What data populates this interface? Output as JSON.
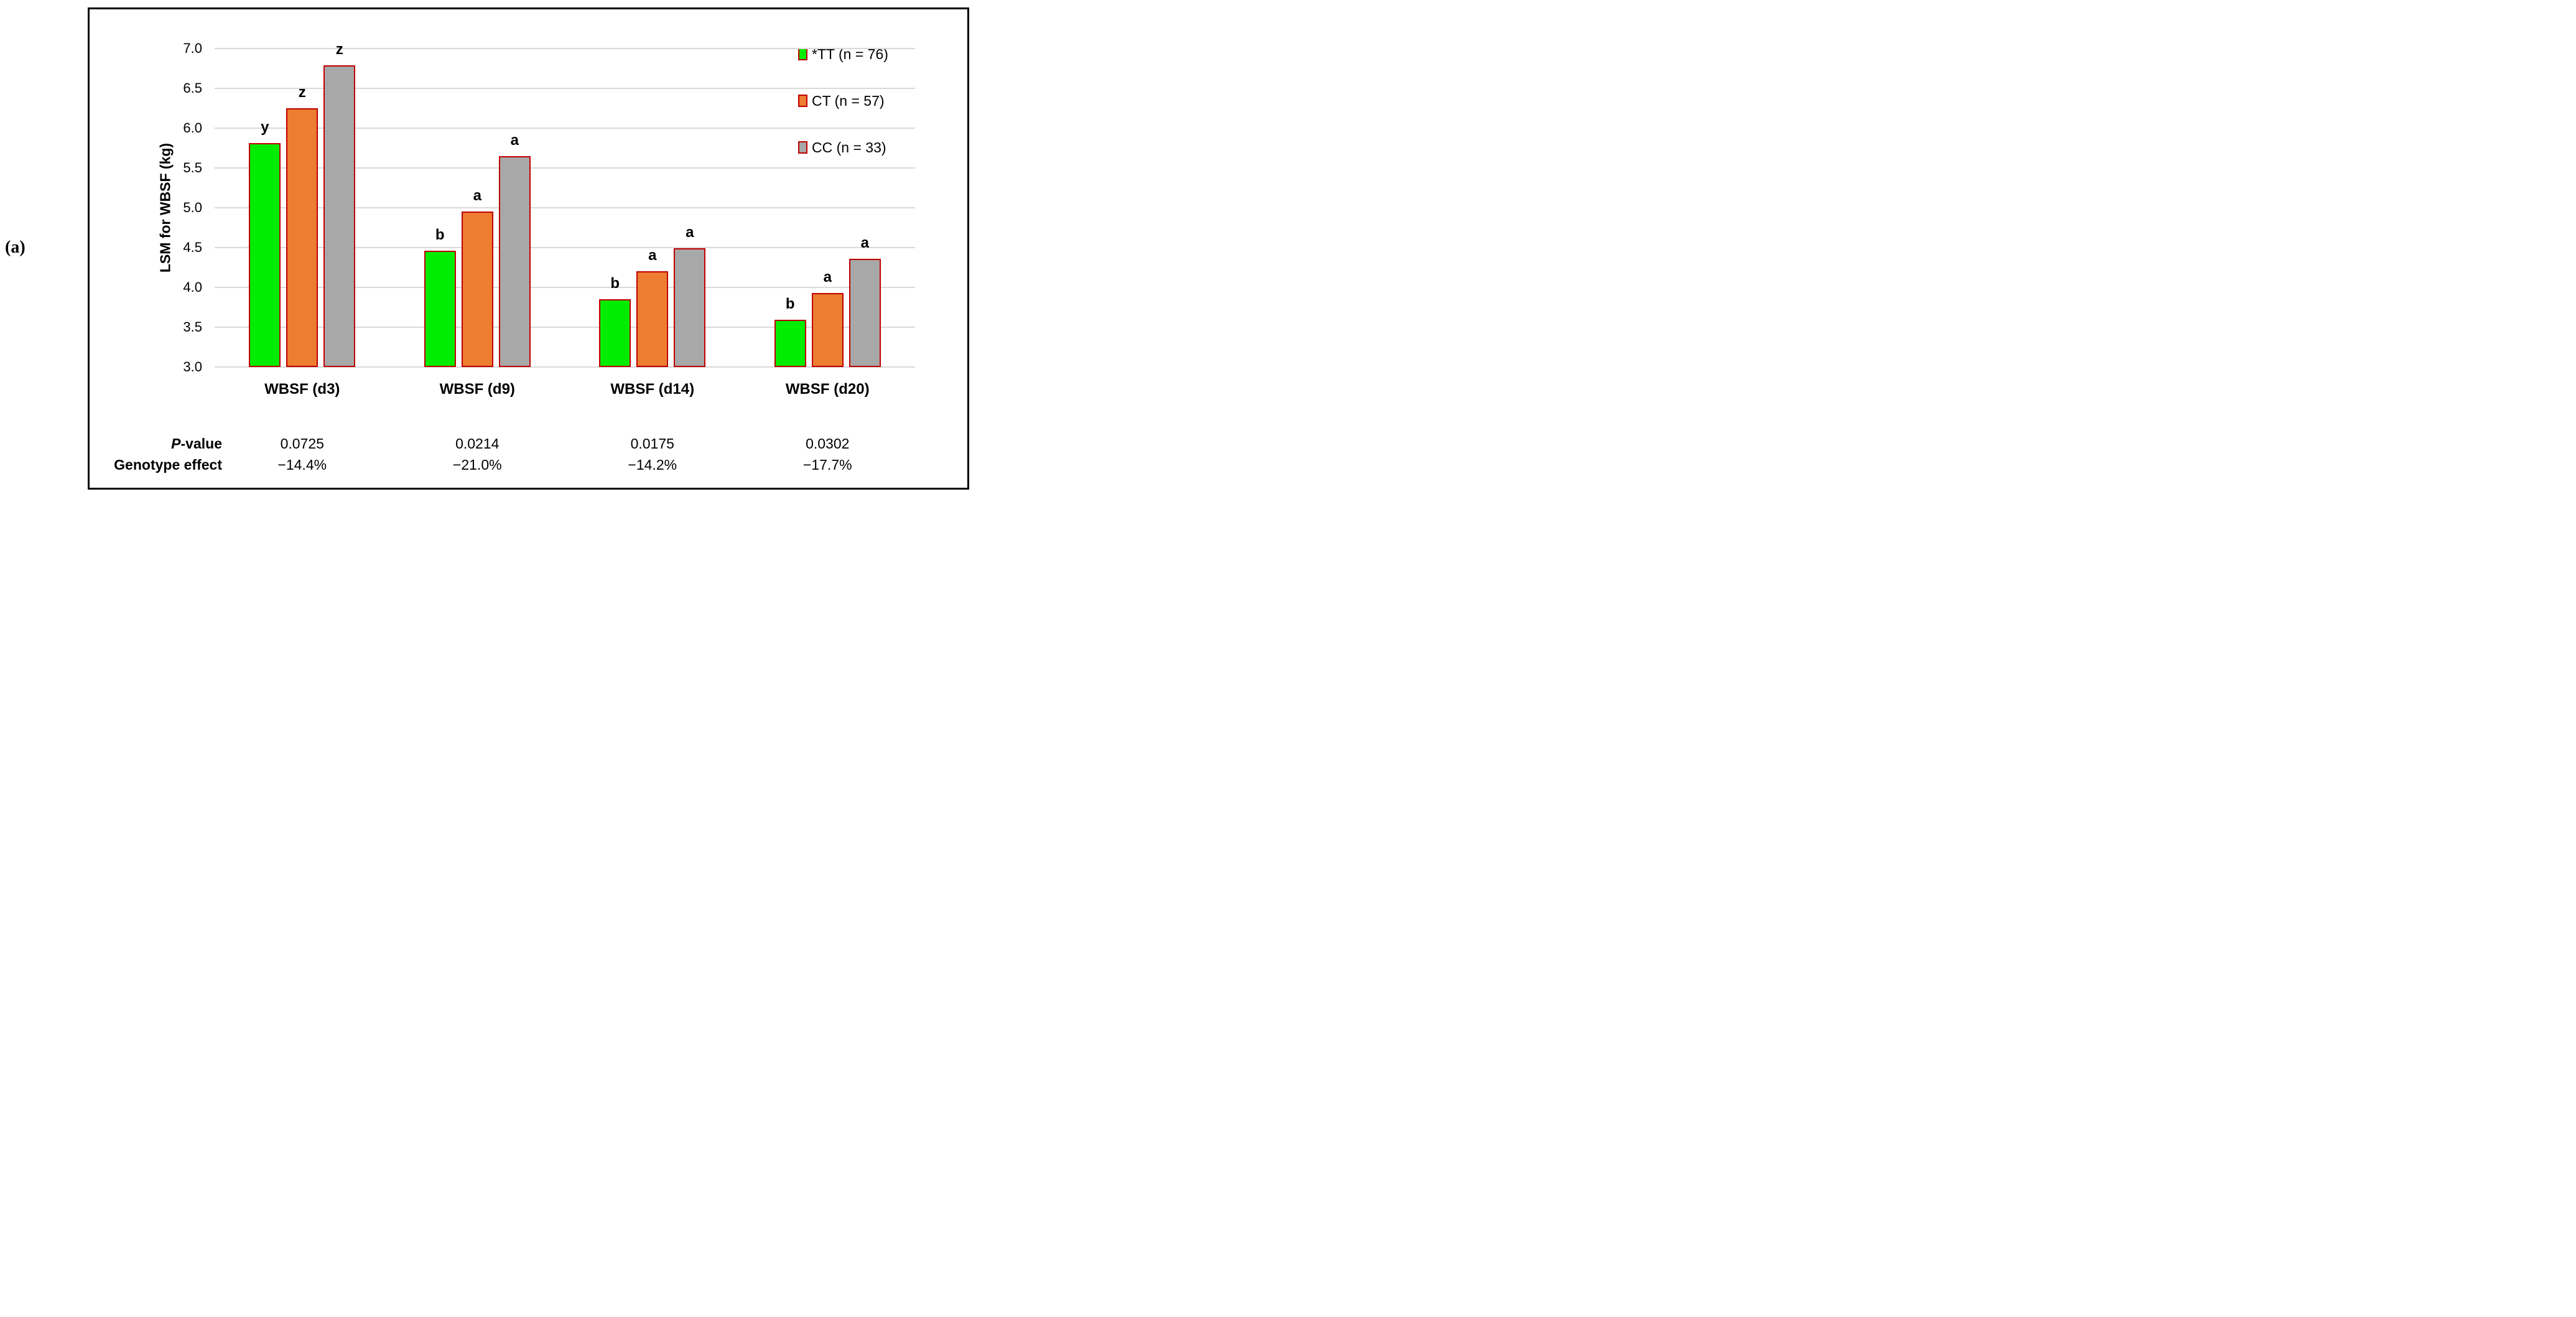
{
  "figure_label": "(a)",
  "chart_data": {
    "type": "bar",
    "title": "",
    "xlabel": "",
    "ylabel": "LSM for WBSF (kg)",
    "ylim": [
      3.0,
      7.0
    ],
    "ytick_step": 0.5,
    "grid": true,
    "legend_position": "top-right",
    "categories": [
      "WBSF (d3)",
      "WBSF (d9)",
      "WBSF (d14)",
      "WBSF (d20)"
    ],
    "series": [
      {
        "name": "*TT (n = 76)",
        "color": "#00ec00",
        "border_color": "#c00000",
        "values": [
          5.81,
          4.46,
          3.85,
          3.59
        ]
      },
      {
        "name": "CT (n = 57)",
        "color": "#ec7d31",
        "border_color": "#c00000",
        "values": [
          6.25,
          4.95,
          4.2,
          3.93
        ]
      },
      {
        "name": "CC (n = 33)",
        "color": "#a8a8a8",
        "border_color": "#c00000",
        "values": [
          6.79,
          5.65,
          4.49,
          4.36
        ]
      }
    ],
    "significance_letters": [
      [
        "y",
        "z",
        "z"
      ],
      [
        "b",
        "a",
        "a"
      ],
      [
        "b",
        "a",
        "a"
      ],
      [
        "b",
        "a",
        "a"
      ]
    ],
    "annotation_rows": [
      {
        "label_parts": [
          {
            "text": "P",
            "italic": true
          },
          {
            "text": "-value",
            "italic": false
          }
        ],
        "values": [
          "0.0725",
          "0.0214",
          "0.0175",
          "0.0302"
        ]
      },
      {
        "label_parts": [
          {
            "text": "Genotype effect",
            "italic": false
          }
        ],
        "values": [
          "−14.4%",
          "−21.0%",
          "−14.2%",
          "−17.7%"
        ]
      }
    ]
  },
  "colors": {
    "gridline": "#d9d9d9",
    "box_border": "#000000",
    "text": "#000000"
  }
}
